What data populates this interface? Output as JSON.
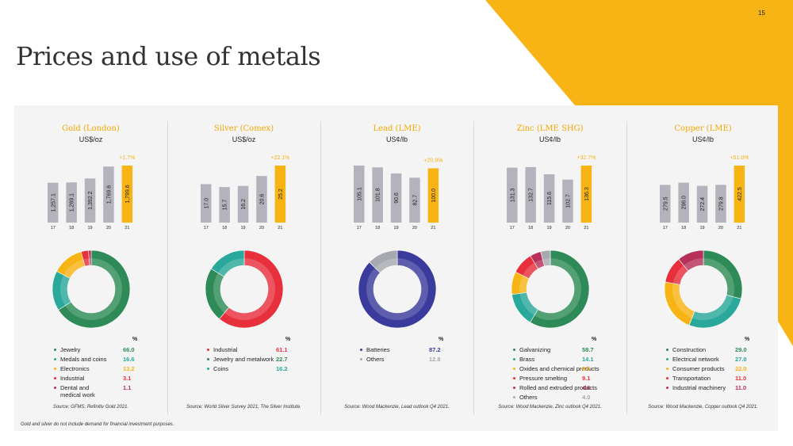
{
  "page": {
    "number": "15",
    "title": "Prices and use of metals",
    "footnote": "Gold and silver do not include demand for financial investment purposes."
  },
  "colors": {
    "accent": "#f8b414",
    "bar": "#b3b3bd",
    "highlight": "#f8b414"
  },
  "chart_data": [
    {
      "type": "bar",
      "title": "Gold (London)",
      "ylabel": "US$/oz",
      "categories": [
        "17",
        "18",
        "19",
        "20",
        "21"
      ],
      "values": [
        1257.1,
        1269.1,
        1392.2,
        1769.6,
        1799.6
      ],
      "labels": [
        "1,257.1",
        "1,269.1",
        "1,392.2",
        "1,769.6",
        "1,799.6"
      ],
      "change": "+1.7%",
      "breakdown": {
        "type": "pie",
        "pct_header": "%",
        "items": [
          {
            "label": "Jewelry",
            "value": 66.0,
            "display": "66.0",
            "color": "#2e8b57"
          },
          {
            "label": "Medals and coins",
            "value": 16.6,
            "display": "16.6",
            "color": "#2aa89b"
          },
          {
            "label": "Electronics",
            "value": 13.2,
            "display": "13.2",
            "color": "#f8b414"
          },
          {
            "label": "Industrial",
            "value": 3.1,
            "display": "3.1",
            "color": "#e8303c"
          },
          {
            "label": "Dental and medical work",
            "value": 1.1,
            "display": "1.1",
            "color": "#b8305a"
          }
        ]
      },
      "source": "Source: GFMS, Refinitiv Gold 2021."
    },
    {
      "type": "bar",
      "title": "Silver (Comex)",
      "ylabel": "US$/oz",
      "categories": [
        "17",
        "18",
        "19",
        "20",
        "21"
      ],
      "values": [
        17.0,
        15.7,
        16.2,
        20.6,
        25.2
      ],
      "labels": [
        "17.0",
        "15.7",
        "16.2",
        "20.6",
        "25.2"
      ],
      "change": "+22.1%",
      "breakdown": {
        "type": "pie",
        "pct_header": "%",
        "items": [
          {
            "label": "Industrial",
            "value": 61.1,
            "display": "61.1",
            "color": "#e8303c"
          },
          {
            "label": "Jewelry and metalwork",
            "value": 22.7,
            "display": "22.7",
            "color": "#2e8b57"
          },
          {
            "label": "Coins",
            "value": 16.2,
            "display": "16.2",
            "color": "#2aa89b"
          }
        ]
      },
      "source": "Source: World Silver Survey 2021, The Silver Institute."
    },
    {
      "type": "bar",
      "title": "Lead (LME)",
      "ylabel": "US¢/lb",
      "categories": [
        "17",
        "18",
        "19",
        "20",
        "21"
      ],
      "values": [
        105.1,
        101.8,
        90.6,
        82.7,
        100.0
      ],
      "labels": [
        "105.1",
        "101.8",
        "90.6",
        "82.7",
        "100.0"
      ],
      "change": "+20.9%",
      "breakdown": {
        "type": "pie",
        "pct_header": "%",
        "items": [
          {
            "label": "Batteries",
            "value": 87.2,
            "display": "87.2",
            "color": "#3b3b9e"
          },
          {
            "label": "Others",
            "value": 12.8,
            "display": "12.8",
            "color": "#a8a8b0"
          }
        ]
      },
      "source": "Source: Wood Mackenzie, Lead outlook Q4 2021."
    },
    {
      "type": "bar",
      "title": "Zinc (LME SHG)",
      "ylabel": "US¢/lb",
      "categories": [
        "17",
        "18",
        "19",
        "20",
        "21"
      ],
      "values": [
        131.3,
        132.7,
        115.6,
        102.7,
        136.3
      ],
      "labels": [
        "131.3",
        "132.7",
        "115.6",
        "102.7",
        "136.3"
      ],
      "change": "+32.7%",
      "breakdown": {
        "type": "pie",
        "pct_header": "%",
        "items": [
          {
            "label": "Galvanizing",
            "value": 58.7,
            "display": "58.7",
            "color": "#2e8b57"
          },
          {
            "label": "Brass",
            "value": 14.1,
            "display": "14.1",
            "color": "#2aa89b"
          },
          {
            "label": "Oxides and chemical products",
            "value": 9.5,
            "display": "9.5",
            "color": "#f8b414"
          },
          {
            "label": "Pressure smelting",
            "value": 9.1,
            "display": "9.1",
            "color": "#e8303c"
          },
          {
            "label": "Rolled and extruded products",
            "value": 4.6,
            "display": "4.6",
            "color": "#b8305a"
          },
          {
            "label": "Others",
            "value": 4.0,
            "display": "4.0",
            "color": "#a8a8b0"
          }
        ]
      },
      "source": "Source: Wood Mackenzie, Zinc outlook Q4 2021."
    },
    {
      "type": "bar",
      "title": "Copper (LME)",
      "ylabel": "US¢/lb",
      "categories": [
        "17",
        "18",
        "19",
        "20",
        "21"
      ],
      "values": [
        279.5,
        296.0,
        272.4,
        279.8,
        422.5
      ],
      "labels": [
        "279.5",
        "296.0",
        "272.4",
        "279.8",
        "422.5"
      ],
      "change": "+51.0%",
      "breakdown": {
        "type": "pie",
        "pct_header": "%",
        "items": [
          {
            "label": "Construction",
            "value": 29.0,
            "display": "29.0",
            "color": "#2e8b57"
          },
          {
            "label": "Electrical network",
            "value": 27.0,
            "display": "27.0",
            "color": "#2aa89b"
          },
          {
            "label": "Consumer products",
            "value": 22.0,
            "display": "22.0",
            "color": "#f8b414"
          },
          {
            "label": "Transportation",
            "value": 11.0,
            "display": "11.0",
            "color": "#e8303c"
          },
          {
            "label": "Industrial machinery",
            "value": 11.0,
            "display": "11.0",
            "color": "#b8305a"
          }
        ]
      },
      "source": "Source: Wood Mackenzie, Copper outlook Q4 2021."
    }
  ]
}
